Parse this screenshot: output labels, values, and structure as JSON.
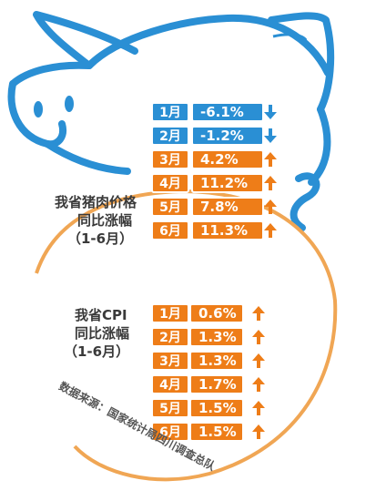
{
  "colors": {
    "blue": "#2a8fd4",
    "orange": "#ee7d18",
    "outline_orange": "#f0a654",
    "text_gray": "#3a3a3a"
  },
  "pork_label": [
    "我省猪肉价格",
    "同比涨幅",
    "（1-6月）"
  ],
  "cpi_label": [
    "我省CPI",
    "同比涨幅",
    "（1-6月）"
  ],
  "source_text": "数据来源：国家统计局四川调查总队",
  "chart_data": [
    {
      "type": "table",
      "categories": [
        "1月",
        "2月",
        "3月",
        "4月",
        "5月",
        "6月"
      ],
      "values": [
        -6.1,
        -1.2,
        4.2,
        11.2,
        7.8,
        11.3
      ],
      "labels": [
        "-6.1%",
        "-1.2%",
        "4.2%",
        "11.2%",
        "7.8%",
        "11.3%"
      ],
      "directions": [
        "down",
        "down",
        "up",
        "up",
        "up",
        "up"
      ]
    },
    {
      "type": "table",
      "categories": [
        "1月",
        "2月",
        "3月",
        "4月",
        "5月",
        "6月"
      ],
      "values": [
        0.6,
        1.3,
        1.3,
        1.7,
        1.5,
        1.5
      ],
      "labels": [
        "0.6%",
        "1.3%",
        "1.3%",
        "1.7%",
        "1.5%",
        "1.5%"
      ],
      "directions": [
        "up",
        "up",
        "up",
        "up",
        "up",
        "up"
      ]
    }
  ]
}
